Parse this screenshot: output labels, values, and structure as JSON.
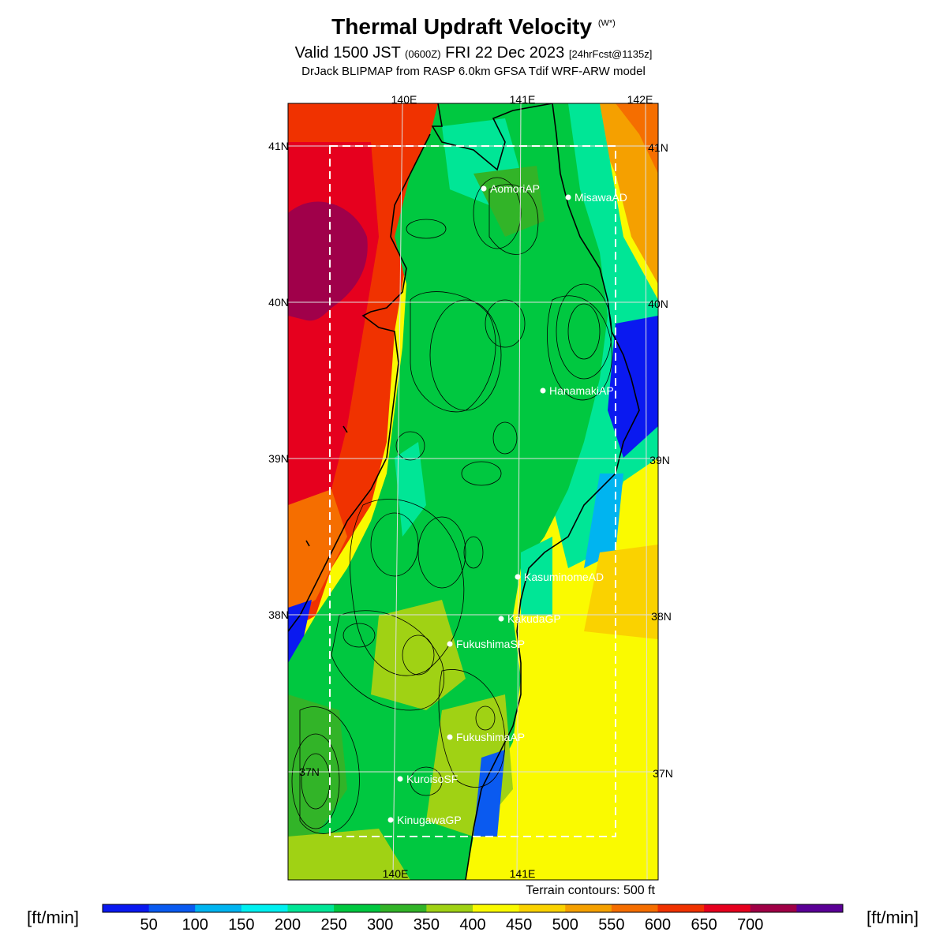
{
  "title": {
    "main": "Thermal Updraft Velocity",
    "symbol": "(W*)",
    "valid_prefix": "Valid 1500 JST",
    "valid_zulu": "(0600Z)",
    "valid_date": "FRI 22 Dec 2023",
    "forecast": "[24hrFcst@1135z]",
    "model": "DrJack BLIPMAP from RASP 6.0km GFSA Tdif WRF-ARW model"
  },
  "axes": {
    "lon_top": [
      "140E",
      "141E",
      "142E"
    ],
    "lon_bottom": [
      "140E",
      "141E"
    ],
    "lat_left": [
      "41N",
      "40N",
      "39N",
      "38N",
      "37N"
    ],
    "lat_right": [
      "41N",
      "40N",
      "39N",
      "38N",
      "37N"
    ]
  },
  "sites": [
    {
      "name": "AomoriAP"
    },
    {
      "name": "MisawaAD"
    },
    {
      "name": "HanamakiAP"
    },
    {
      "name": "KasuminomeAD"
    },
    {
      "name": "KakudaGP"
    },
    {
      "name": "FukushimaSP"
    },
    {
      "name": "FukushimaAP"
    },
    {
      "name": "KuroisoSF"
    },
    {
      "name": "KinugawaGP"
    }
  ],
  "terrain_note": "Terrain contours: 500 ft",
  "colorbar": {
    "unit_left": "[ft/min]",
    "unit_right": "[ft/min]",
    "labels": [
      "50",
      "100",
      "150",
      "200",
      "250",
      "300",
      "350",
      "400",
      "450",
      "500",
      "550",
      "600",
      "650",
      "700"
    ],
    "colors": [
      "#0a19f0",
      "#0a5af0",
      "#00b4f0",
      "#00f0f0",
      "#00e696",
      "#00c840",
      "#32b428",
      "#a0d214",
      "#fafa00",
      "#fad200",
      "#f5a000",
      "#f56e00",
      "#f03200",
      "#e6001e",
      "#a00046",
      "#5a0096"
    ]
  },
  "colors": {
    "ocean_west_far": "#a0004a",
    "ocean_west": "#e6001e",
    "ocean_west_near": "#f03200",
    "land": "#00c840",
    "ocean_east": "#fafa00"
  }
}
